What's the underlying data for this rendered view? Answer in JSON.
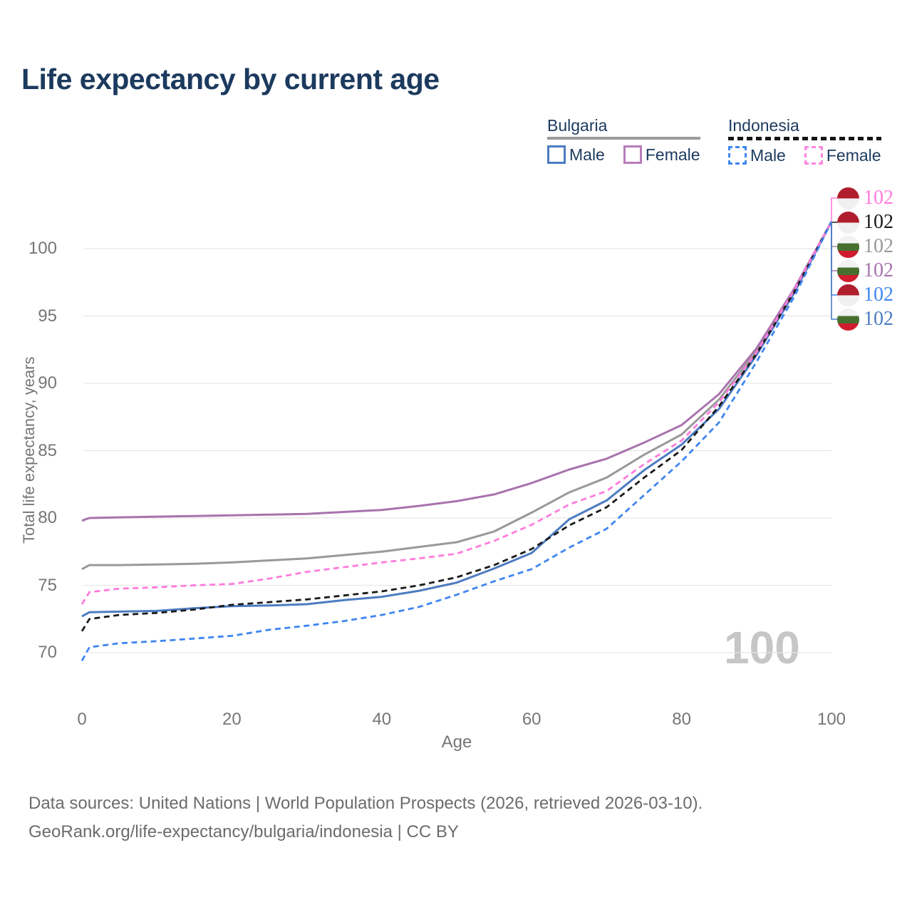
{
  "title": "Life expectancy by current age",
  "colors": {
    "title_navy": "#1c3a5e",
    "axis_text": "#767676",
    "gridline": "#e7e7e7",
    "footer_text": "#6c6c6c",
    "watermark": "#c6c6c6",
    "bulgaria_underline": "#9a9a9a",
    "indonesia_underline": "#151515"
  },
  "legend": {
    "groups": [
      {
        "country": "Bulgaria",
        "line_style": "solid",
        "underline_color": "#9a9a9a",
        "items": [
          {
            "label": "Male",
            "color": "#4d7cc1",
            "style": "solid"
          },
          {
            "label": "Female",
            "color": "#b87cba",
            "style": "solid"
          }
        ]
      },
      {
        "country": "Indonesia",
        "line_style": "dashed",
        "underline_color": "#151515",
        "items": [
          {
            "label": "Male",
            "color": "#3f86f2",
            "style": "dashed"
          },
          {
            "label": "Female",
            "color": "#ff85e0",
            "style": "dashed"
          }
        ]
      }
    ]
  },
  "chart_data": {
    "type": "line",
    "title": "Life expectancy by current age",
    "xlabel": "Age",
    "ylabel": "Total life expectancy, years",
    "x_ticks": [
      0,
      20,
      40,
      60,
      80,
      100
    ],
    "y_ticks": [
      70,
      75,
      80,
      85,
      90,
      95,
      100
    ],
    "xlim": [
      0,
      100
    ],
    "ylim": [
      69,
      102.5
    ],
    "grid": "horizontal",
    "legend_position": "top-right",
    "x": [
      0,
      1,
      5,
      10,
      15,
      20,
      25,
      30,
      35,
      40,
      45,
      50,
      55,
      60,
      65,
      70,
      75,
      80,
      85,
      90,
      95,
      100
    ],
    "series": [
      {
        "name": "Bulgaria",
        "slug": "bulgaria-all",
        "color": "#999999",
        "dash": "solid",
        "end_label": "102",
        "values": [
          76.2,
          76.5,
          76.5,
          76.55,
          76.6,
          76.7,
          76.85,
          77.0,
          77.25,
          77.5,
          77.85,
          78.2,
          79.0,
          80.4,
          81.9,
          83.0,
          84.7,
          86.2,
          88.8,
          92.4,
          96.9,
          102
        ]
      },
      {
        "name": "Bulgaria Female",
        "slug": "bulgaria-female",
        "color": "#a873ad",
        "dash": "solid",
        "end_label": "102",
        "values": [
          79.8,
          80.0,
          80.05,
          80.1,
          80.15,
          80.2,
          80.25,
          80.3,
          80.45,
          80.6,
          80.9,
          81.25,
          81.75,
          82.6,
          83.6,
          84.4,
          85.6,
          86.9,
          89.2,
          92.6,
          97.0,
          102
        ]
      },
      {
        "name": "Bulgaria Male",
        "slug": "bulgaria-male",
        "color": "#4d7cc1",
        "dash": "solid",
        "end_label": "102",
        "values": [
          72.7,
          73.0,
          73.05,
          73.1,
          73.3,
          73.45,
          73.5,
          73.6,
          73.9,
          74.15,
          74.6,
          75.2,
          76.25,
          77.4,
          79.9,
          81.3,
          83.55,
          85.45,
          88.1,
          92.1,
          96.7,
          102
        ]
      },
      {
        "name": "Indonesia",
        "slug": "indonesia-all",
        "color": "#1a1a1a",
        "dash": "dashed",
        "end_label": "102",
        "values": [
          71.6,
          72.5,
          72.8,
          72.95,
          73.2,
          73.55,
          73.75,
          73.95,
          74.25,
          74.55,
          75.0,
          75.6,
          76.5,
          77.7,
          79.45,
          80.8,
          83.0,
          85.05,
          88.3,
          92.2,
          96.75,
          102
        ]
      },
      {
        "name": "Indonesia Female",
        "slug": "indonesia-female",
        "color": "#ff7bdc",
        "dash": "dashed",
        "end_label": "102",
        "values": [
          73.6,
          74.5,
          74.75,
          74.85,
          75.0,
          75.1,
          75.5,
          76.0,
          76.35,
          76.7,
          77.0,
          77.35,
          78.3,
          79.5,
          81.0,
          82.0,
          84.0,
          85.75,
          88.6,
          92.3,
          96.9,
          102
        ]
      },
      {
        "name": "Indonesia Male",
        "slug": "indonesia-male",
        "color": "#3f86f2",
        "dash": "dashed",
        "end_label": "102",
        "values": [
          69.4,
          70.4,
          70.7,
          70.85,
          71.05,
          71.25,
          71.7,
          72.0,
          72.35,
          72.8,
          73.4,
          74.3,
          75.3,
          76.2,
          77.8,
          79.2,
          81.7,
          84.2,
          87.1,
          91.6,
          96.4,
          102
        ]
      }
    ]
  },
  "end_labels": [
    {
      "value": "102",
      "color": "#ff7bdc",
      "flag": "indonesia",
      "series": "Indonesia Female"
    },
    {
      "value": "102",
      "color": "#1a1a1a",
      "flag": "indonesia",
      "series": "Indonesia"
    },
    {
      "value": "102",
      "color": "#999999",
      "flag": "bulgaria",
      "series": "Bulgaria"
    },
    {
      "value": "102",
      "color": "#a873ad",
      "flag": "bulgaria",
      "series": "Bulgaria Female"
    },
    {
      "value": "102",
      "color": "#3f86f2",
      "flag": "indonesia",
      "series": "Indonesia Male"
    },
    {
      "value": "102",
      "color": "#4d7cc1",
      "flag": "bulgaria",
      "series": "Bulgaria Male"
    }
  ],
  "watermark": "100",
  "footer": {
    "line1": "Data sources: United Nations | World Population Prospects (2026, retrieved 2026-03-10).",
    "line2": "GeoRank.org/life-expectancy/bulgaria/indonesia | CC BY"
  }
}
